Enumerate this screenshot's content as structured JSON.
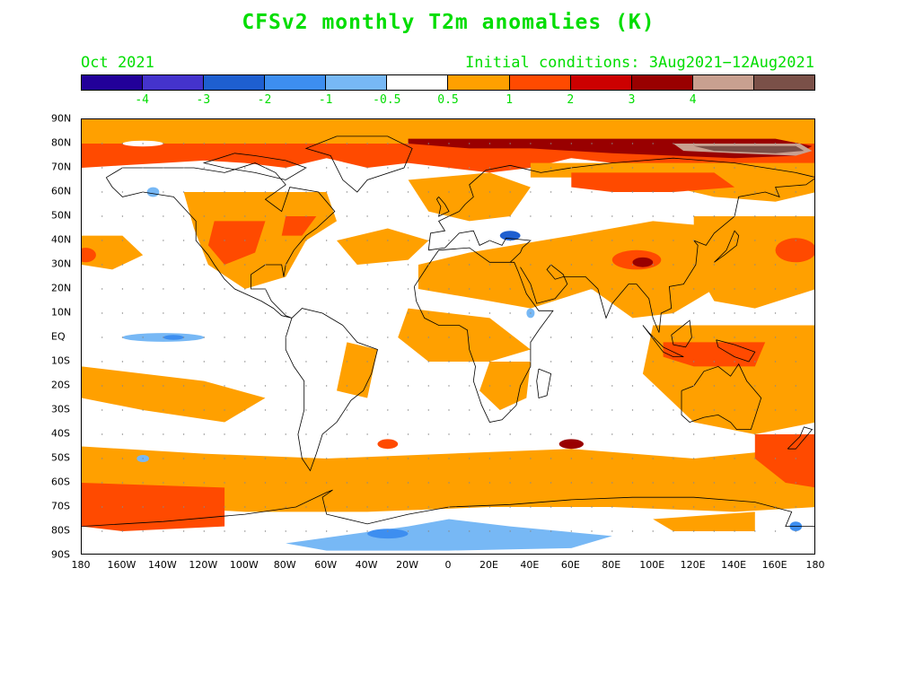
{
  "title": "CFSv2 monthly T2m anomalies (K)",
  "valid_month": "Oct 2021",
  "initial_conditions": "Initial conditions: 3Aug2021−12Aug2021",
  "colorbar": {
    "colors": [
      "#220099",
      "#4433cc",
      "#1e5fd0",
      "#3d8ef0",
      "#77b8f5",
      "#ffffff",
      "#ffa000",
      "#ff4a00",
      "#cc0000",
      "#990000",
      "#c8a090",
      "#7a5048"
    ],
    "labels": [
      "-4",
      "-3",
      "-2",
      "-1",
      "-0.5",
      "0.5",
      "1",
      "2",
      "3",
      "4"
    ]
  },
  "lat_labels": [
    "90N",
    "80N",
    "70N",
    "60N",
    "50N",
    "40N",
    "30N",
    "20N",
    "10N",
    "EQ",
    "10S",
    "20S",
    "30S",
    "40S",
    "50S",
    "60S",
    "70S",
    "80S",
    "90S"
  ],
  "lon_labels": [
    "180",
    "160W",
    "140W",
    "120W",
    "100W",
    "80W",
    "60W",
    "40W",
    "20W",
    "0",
    "20E",
    "40E",
    "60E",
    "80E",
    "100E",
    "120E",
    "140E",
    "160E",
    "180"
  ],
  "anomaly_colors": {
    "light_orange": "#ffa000",
    "orange_red": "#ff4a00",
    "dark_red": "#990000",
    "brown": "#7a5048",
    "light_brown": "#c8a090",
    "light_blue": "#77b8f5",
    "blue": "#3d8ef0",
    "mid_blue": "#1e5fd0"
  }
}
